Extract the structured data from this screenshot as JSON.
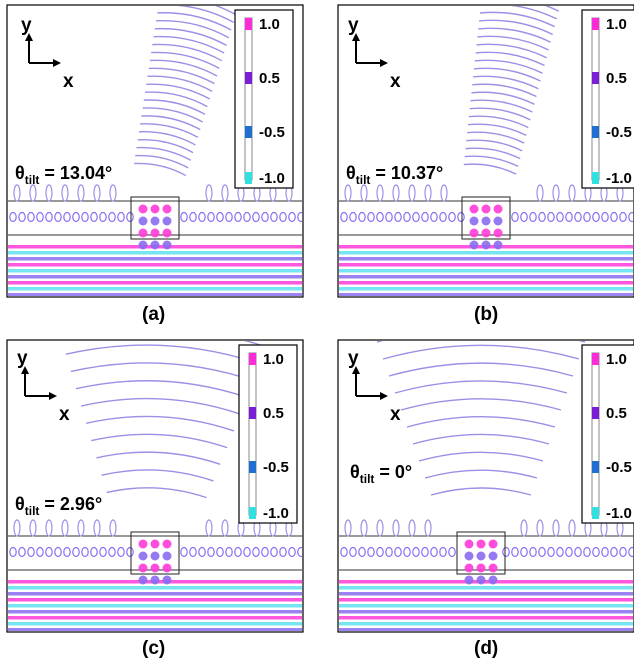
{
  "panels": [
    {
      "caption": "(a)",
      "theta_label": "θ",
      "theta_sub": "tilt",
      "theta_value": " = 13.04°",
      "tilt_deg": 13.04
    },
    {
      "caption": "(b)",
      "theta_label": "θ",
      "theta_sub": "tilt",
      "theta_value": " = 10.37°",
      "tilt_deg": 10.37
    },
    {
      "caption": "(c)",
      "theta_label": "θ",
      "theta_sub": "tilt",
      "theta_value": " = 2.96°",
      "tilt_deg": 2.96
    },
    {
      "caption": "(d)",
      "theta_label": "θ",
      "theta_sub": "tilt",
      "theta_value": " = 0°",
      "tilt_deg": 0
    }
  ],
  "axes": {
    "y": "y",
    "x": "x"
  },
  "colorbar": {
    "ticks": [
      "1.0",
      "0.5",
      "-0.5",
      "-1.0"
    ],
    "colors": [
      "#ff2bd6",
      "#7a1fd6",
      "#1e6fd0",
      "#33e0e0"
    ]
  },
  "palette": {
    "wave_line": "#9b8fe6",
    "magenta": "#ff3ad8",
    "cyan": "#5de0f0",
    "violet": "#8a6cf0",
    "frame": "#000000"
  }
}
